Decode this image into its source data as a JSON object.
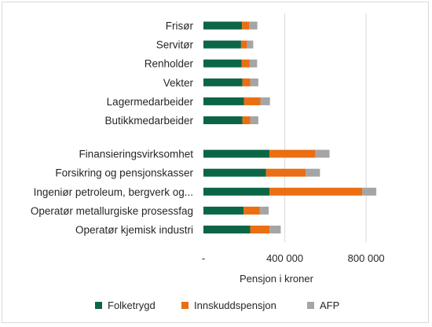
{
  "chart_data": {
    "type": "bar",
    "orientation": "horizontal",
    "stacked": true,
    "categories": [
      "Frisør",
      "Servitør",
      "Renholder",
      "Vekter",
      "Lagermedarbeider",
      "Butikkmedarbeider",
      "Finansieringsvirksomhet",
      "Forsikring og pensjonskasser",
      "Ingeniør petroleum, bergverk og...",
      "Operatør metallurgiske prosessfag",
      "Operatør kjemisk industri"
    ],
    "groups": [
      [
        0,
        1,
        2,
        3,
        4,
        5
      ],
      [
        6,
        7,
        8,
        9,
        10
      ]
    ],
    "series": [
      {
        "name": "Folketrygd",
        "color": "#0b6646",
        "values": [
          190000,
          185000,
          188000,
          192000,
          200000,
          192000,
          325000,
          308000,
          325000,
          198000,
          230000
        ]
      },
      {
        "name": "Innskuddspensjon",
        "color": "#ea6e12",
        "values": [
          35000,
          30000,
          38000,
          38000,
          80000,
          38000,
          225000,
          195000,
          455000,
          78000,
          95000
        ]
      },
      {
        "name": "AFP",
        "color": "#a5a5a5",
        "values": [
          40000,
          30000,
          38000,
          40000,
          47000,
          40000,
          70000,
          70000,
          70000,
          45000,
          55000
        ]
      }
    ],
    "xlabel": "Pensjon i kroner",
    "xlim": [
      0,
      950000
    ],
    "xticks": [
      0,
      400000,
      800000
    ],
    "xtick_labels": [
      "-",
      "400 000",
      "800 000"
    ],
    "grid": "vertical",
    "legend_position": "bottom"
  }
}
